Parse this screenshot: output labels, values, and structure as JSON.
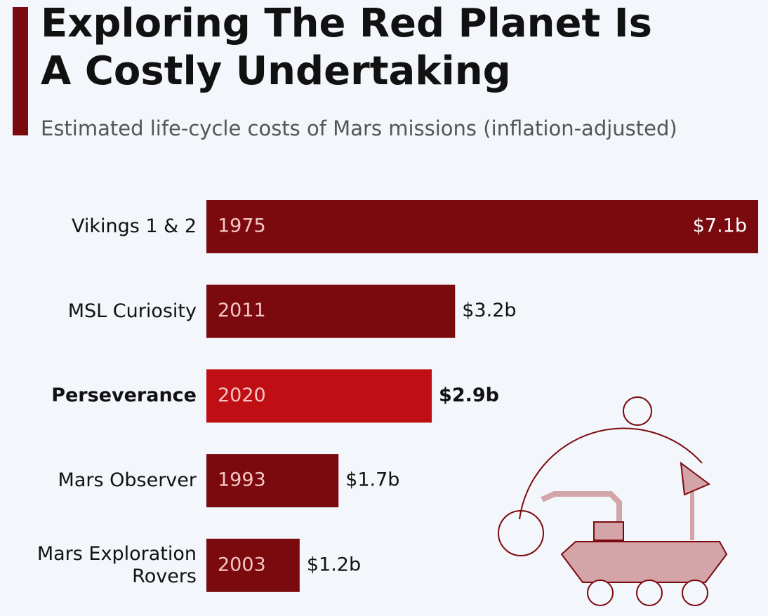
{
  "chart_data": {
    "type": "bar",
    "orientation": "horizontal",
    "title": "Exploring The Red Planet Is A Costly Undertaking",
    "subtitle": "Estimated life-cycle costs of Mars missions (inflation-adjusted)",
    "categories": [
      "Vikings 1 & 2",
      "MSL Curiosity",
      "Perseverance",
      "Mars Observer",
      "Mars Exploration Rovers"
    ],
    "years": [
      "1975",
      "2011",
      "2020",
      "1993",
      "2003"
    ],
    "values": [
      7.1,
      3.2,
      2.9,
      1.7,
      1.2
    ],
    "value_labels": [
      "$7.1b",
      "$3.2b",
      "$2.9b",
      "$1.7b",
      "$1.2b"
    ],
    "colors": [
      "#7b0a0e",
      "#7b0a0e",
      "#c00f14",
      "#7b0a0e",
      "#7b0a0e"
    ],
    "xlim": [
      0,
      7.1
    ]
  }
}
